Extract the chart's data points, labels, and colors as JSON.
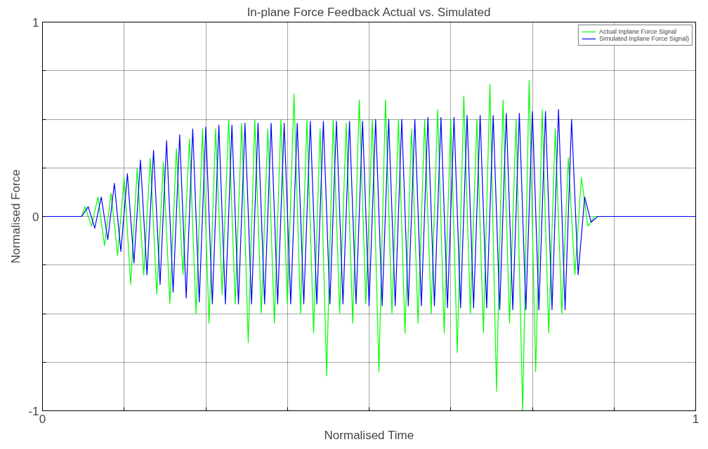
{
  "chart_data": {
    "type": "line",
    "title": "In-plane Force Feedback Actual vs. Simulated",
    "xlabel": "Normalised Time",
    "ylabel": "Normalised Force",
    "xlim": [
      0,
      1
    ],
    "ylim": [
      -1,
      1
    ],
    "xticks": [
      0,
      {
        "value": 0.125,
        "label": null
      },
      {
        "value": 0.25,
        "label": null
      },
      {
        "value": 0.375,
        "label": null
      },
      {
        "value": 0.5,
        "label": null
      },
      {
        "value": 0.625,
        "label": null
      },
      {
        "value": 0.75,
        "label": null
      },
      {
        "value": 0.875,
        "label": null
      },
      1
    ],
    "yticks": [
      -1,
      {
        "value": -0.75,
        "label": null
      },
      {
        "value": -0.5,
        "label": null
      },
      {
        "value": -0.25,
        "label": null
      },
      0,
      {
        "value": 0.25,
        "label": null
      },
      {
        "value": 0.5,
        "label": null
      },
      {
        "value": 0.75,
        "label": null
      },
      1
    ],
    "grid": true,
    "legend": "top right",
    "line_style": "solid",
    "series": [
      {
        "name": "Actual Inplane Force Signal",
        "color": "#00ff00",
        "x": [
          0,
          0.06,
          0.065,
          0.075,
          0.085,
          0.095,
          0.105,
          0.115,
          0.125,
          0.135,
          0.145,
          0.155,
          0.165,
          0.175,
          0.185,
          0.195,
          0.205,
          0.215,
          0.225,
          0.235,
          0.245,
          0.255,
          0.265,
          0.275,
          0.285,
          0.295,
          0.305,
          0.315,
          0.325,
          0.335,
          0.345,
          0.355,
          0.365,
          0.375,
          0.385,
          0.395,
          0.405,
          0.415,
          0.425,
          0.435,
          0.445,
          0.455,
          0.465,
          0.475,
          0.485,
          0.495,
          0.505,
          0.515,
          0.525,
          0.535,
          0.545,
          0.555,
          0.565,
          0.575,
          0.585,
          0.595,
          0.605,
          0.615,
          0.625,
          0.635,
          0.645,
          0.655,
          0.665,
          0.675,
          0.685,
          0.695,
          0.705,
          0.715,
          0.725,
          0.735,
          0.745,
          0.755,
          0.765,
          0.775,
          0.785,
          0.795,
          0.805,
          0.815,
          0.825,
          0.835,
          0.845,
          1
        ],
        "values": [
          0,
          0,
          0.05,
          -0.05,
          0.1,
          -0.15,
          0.12,
          -0.2,
          0.2,
          -0.35,
          0.25,
          -0.3,
          0.3,
          -0.4,
          0.28,
          -0.45,
          0.35,
          -0.3,
          0.4,
          -0.5,
          0.45,
          -0.55,
          0.45,
          -0.4,
          0.5,
          -0.45,
          0.48,
          -0.65,
          0.5,
          -0.5,
          0.45,
          -0.55,
          0.5,
          -0.45,
          0.63,
          -0.5,
          0.5,
          -0.6,
          0.45,
          -0.82,
          0.5,
          -0.5,
          0.48,
          -0.55,
          0.6,
          -0.45,
          0.5,
          -0.8,
          0.6,
          -0.5,
          0.5,
          -0.6,
          0.45,
          -0.55,
          0.5,
          -0.5,
          0.55,
          -0.6,
          0.5,
          -0.7,
          0.62,
          -0.5,
          0.5,
          -0.6,
          0.68,
          -0.9,
          0.6,
          -0.55,
          0.5,
          -1.0,
          0.7,
          -0.8,
          0.55,
          -0.6,
          0.45,
          -0.5,
          0.3,
          -0.3,
          0.2,
          -0.05,
          0,
          0
        ]
      },
      {
        "name": "Simulated Inplane Force Signal)",
        "color": "#0000ff",
        "x": [
          0,
          0.06,
          0.07,
          0.08,
          0.09,
          0.1,
          0.11,
          0.12,
          0.13,
          0.14,
          0.15,
          0.16,
          0.17,
          0.18,
          0.19,
          0.2,
          0.21,
          0.22,
          0.23,
          0.24,
          0.25,
          0.26,
          0.27,
          0.28,
          0.29,
          0.3,
          0.31,
          0.32,
          0.33,
          0.34,
          0.35,
          0.36,
          0.37,
          0.38,
          0.39,
          0.4,
          0.41,
          0.42,
          0.43,
          0.44,
          0.45,
          0.46,
          0.47,
          0.48,
          0.49,
          0.5,
          0.51,
          0.52,
          0.53,
          0.54,
          0.55,
          0.56,
          0.57,
          0.58,
          0.59,
          0.6,
          0.61,
          0.62,
          0.63,
          0.64,
          0.65,
          0.66,
          0.67,
          0.68,
          0.69,
          0.7,
          0.71,
          0.72,
          0.73,
          0.74,
          0.75,
          0.76,
          0.77,
          0.78,
          0.79,
          0.8,
          0.81,
          0.82,
          0.83,
          0.84,
          0.85,
          1
        ],
        "values": [
          0,
          0,
          0.05,
          -0.06,
          0.1,
          -0.12,
          0.17,
          -0.18,
          0.22,
          -0.24,
          0.29,
          -0.3,
          0.34,
          -0.35,
          0.39,
          -0.39,
          0.42,
          -0.42,
          0.45,
          -0.44,
          0.46,
          -0.45,
          0.47,
          -0.45,
          0.47,
          -0.45,
          0.48,
          -0.45,
          0.48,
          -0.45,
          0.48,
          -0.45,
          0.48,
          -0.45,
          0.48,
          -0.45,
          0.49,
          -0.45,
          0.49,
          -0.45,
          0.49,
          -0.45,
          0.49,
          -0.45,
          0.49,
          -0.46,
          0.5,
          -0.46,
          0.5,
          -0.46,
          0.5,
          -0.46,
          0.5,
          -0.46,
          0.51,
          -0.46,
          0.51,
          -0.47,
          0.51,
          -0.47,
          0.52,
          -0.47,
          0.52,
          -0.47,
          0.52,
          -0.48,
          0.53,
          -0.48,
          0.53,
          -0.48,
          0.54,
          -0.48,
          0.54,
          -0.48,
          0.55,
          -0.48,
          0.5,
          -0.3,
          0.1,
          -0.03,
          0,
          0
        ]
      }
    ]
  }
}
